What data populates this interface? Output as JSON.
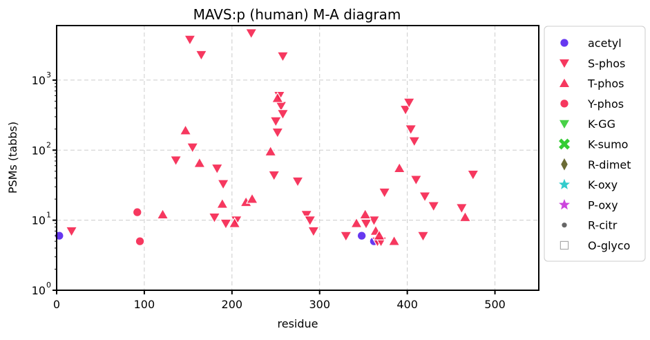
{
  "chart_data": {
    "type": "scatter",
    "title": "MAVS:p (human) M-A diagram",
    "xlabel": "residue",
    "ylabel": "PSMs (tabbs)",
    "xlim": [
      0,
      550
    ],
    "ylim": [
      1,
      6000
    ],
    "yscale": "log",
    "grid": true,
    "legend_position": "outside-right",
    "x_ticks": [
      0,
      100,
      200,
      300,
      400,
      500
    ],
    "x_tick_labels": [
      "0",
      "100",
      "200",
      "300",
      "400",
      "500"
    ],
    "y_ticks": [
      1,
      10,
      100,
      1000
    ],
    "y_tick_labels": [
      "10",
      "10",
      "10",
      "10"
    ],
    "y_tick_exponents": [
      "0",
      "1",
      "2",
      "3"
    ],
    "series": [
      {
        "name": "acetyl",
        "marker": "circle",
        "color": "#5522ee",
        "points": [
          [
            3,
            6
          ],
          [
            348,
            6
          ],
          [
            362,
            5
          ]
        ]
      },
      {
        "name": "S-phos",
        "marker": "triangle-down",
        "color": "#f5224e",
        "points": [
          [
            17,
            7
          ],
          [
            152,
            3800
          ],
          [
            165,
            2300
          ],
          [
            222,
            4700
          ],
          [
            258,
            2200
          ],
          [
            136,
            72
          ],
          [
            155,
            110
          ],
          [
            183,
            55
          ],
          [
            180,
            11
          ],
          [
            190,
            33
          ],
          [
            193,
            9
          ],
          [
            205,
            10
          ],
          [
            248,
            44
          ],
          [
            250,
            260
          ],
          [
            254,
            600
          ],
          [
            256,
            430
          ],
          [
            258,
            330
          ],
          [
            252,
            180
          ],
          [
            275,
            36
          ],
          [
            285,
            12
          ],
          [
            293,
            7
          ],
          [
            330,
            6
          ],
          [
            353,
            9
          ],
          [
            362,
            10
          ],
          [
            366,
            5
          ],
          [
            370,
            5
          ],
          [
            374,
            25
          ],
          [
            398,
            380
          ],
          [
            402,
            480
          ],
          [
            404,
            200
          ],
          [
            408,
            135
          ],
          [
            410,
            38
          ],
          [
            418,
            6
          ],
          [
            420,
            22
          ],
          [
            430,
            16
          ],
          [
            462,
            15
          ],
          [
            475,
            45
          ],
          [
            289,
            10
          ]
        ]
      },
      {
        "name": "T-phos",
        "marker": "triangle-up",
        "color": "#f5224e",
        "points": [
          [
            121,
            12
          ],
          [
            147,
            190
          ],
          [
            163,
            65
          ],
          [
            189,
            17
          ],
          [
            203,
            9
          ],
          [
            216,
            18
          ],
          [
            223,
            20
          ],
          [
            244,
            95
          ],
          [
            252,
            550
          ],
          [
            342,
            9
          ],
          [
            352,
            12
          ],
          [
            364,
            7
          ],
          [
            368,
            6
          ],
          [
            385,
            5
          ],
          [
            391,
            55
          ],
          [
            466,
            11
          ]
        ]
      },
      {
        "name": "Y-phos",
        "marker": "circle",
        "color": "#f5224e",
        "points": [
          [
            92,
            13
          ],
          [
            95,
            5
          ]
        ]
      },
      {
        "name": "K-GG",
        "marker": "triangle-down",
        "color": "#33cc33",
        "points": []
      },
      {
        "name": "K-sumo",
        "marker": "x",
        "color": "#33cc33",
        "points": []
      },
      {
        "name": "R-dimet",
        "marker": "diamond",
        "color": "#6b6b35",
        "points": []
      },
      {
        "name": "K-oxy",
        "marker": "star",
        "color": "#33cccc",
        "points": []
      },
      {
        "name": "P-oxy",
        "marker": "star",
        "color": "#cc44dd",
        "points": []
      },
      {
        "name": "R-citr",
        "marker": "dot",
        "color": "#666666",
        "points": []
      },
      {
        "name": "O-glyco",
        "marker": "square-open",
        "color": "#aaaaaa",
        "points": []
      }
    ]
  }
}
